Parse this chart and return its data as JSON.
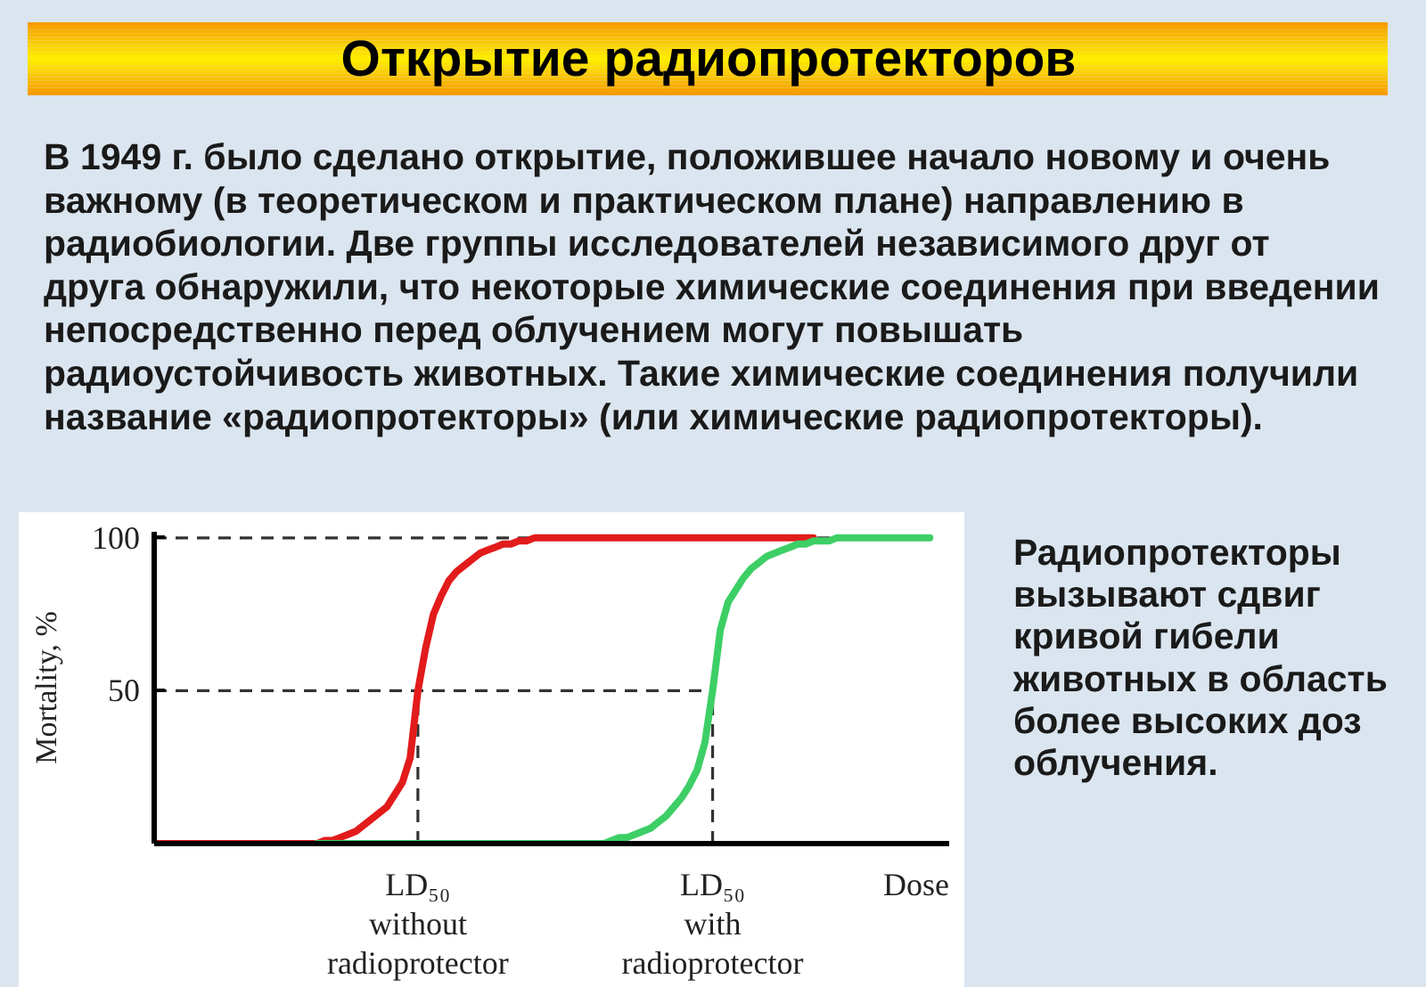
{
  "chart_data": {
    "type": "line",
    "title": "Открытие радиопротекторов",
    "ylabel": "Mortality, %",
    "xlabel": "Dose",
    "annotations": [
      "В 1949 г. было сделано открытие, положившее начало новому  и очень важному (в теоретическом и практическом плане) направлению в радиобиологии. Две группы исследователей независимого друг от друга обнаружили, что некоторые химические соединения при введении непосредственно перед облучением могут повышать\nрадиоустойчивость животных. Такие химические соединения получили название «радиопротекторы» (или химические радиопротекторы).",
      "Радиопротекторы вызывают сдвиг кривой гибели животных в область более высоких доз облучения."
    ],
    "categories": [
      null,
      null,
      null,
      null,
      null,
      null,
      null,
      null,
      null,
      null,
      null,
      null,
      null,
      null,
      null,
      null,
      null,
      null,
      null,
      null,
      null,
      null,
      null,
      null,
      null,
      null,
      null,
      null,
      null,
      null,
      null,
      null,
      null,
      null,
      "LD₅₀ without radioprotector",
      null,
      null,
      null,
      null,
      null,
      null,
      null,
      null,
      null,
      null,
      null,
      null,
      null,
      null,
      null,
      null,
      null,
      null,
      null,
      null,
      null,
      null,
      null,
      null,
      null,
      null,
      null,
      null,
      null,
      null,
      null,
      null,
      null,
      null,
      null,
      null,
      null,
      "LD₅₀ with radioprotector",
      null,
      null,
      null,
      null,
      null,
      null,
      null,
      null,
      null,
      null,
      null,
      null,
      null,
      null,
      null,
      null,
      null,
      null,
      null,
      null,
      null,
      null,
      null,
      null,
      null,
      null,
      null,
      null
    ],
    "series": [
      {
        "color": "#e21b1b",
        "values": [
          0,
          0,
          0,
          0,
          0,
          0,
          0,
          0,
          0,
          0,
          0,
          0,
          0,
          0,
          0,
          0,
          0,
          0,
          0,
          0,
          0,
          0,
          1,
          1,
          2,
          3,
          4,
          6,
          8,
          10,
          12,
          16,
          20,
          28,
          50,
          64,
          75,
          81,
          86,
          89,
          91,
          93,
          95,
          96,
          97,
          98,
          98,
          99,
          99,
          100,
          100,
          100,
          100,
          100,
          100,
          100,
          100,
          100,
          100,
          100,
          100,
          100,
          100,
          100,
          100,
          100,
          100,
          100,
          100,
          100,
          100,
          100,
          100,
          100,
          100,
          100,
          100,
          100,
          100,
          100,
          100,
          100,
          100,
          100,
          100,
          100,
          null,
          null,
          null,
          null,
          null,
          null,
          null,
          null,
          null,
          null,
          null,
          null,
          null,
          null,
          null
        ]
      },
      {
        "color": "#3dcf66",
        "values": [
          null,
          null,
          null,
          null,
          null,
          null,
          null,
          null,
          null,
          null,
          null,
          null,
          null,
          null,
          null,
          null,
          null,
          null,
          null,
          null,
          null,
          0,
          0,
          0,
          0,
          0,
          0,
          0,
          0,
          0,
          0,
          0,
          0,
          0,
          0,
          0,
          0,
          0,
          0,
          0,
          0,
          0,
          0,
          0,
          0,
          0,
          0,
          0,
          0,
          0,
          0,
          0,
          0,
          0,
          0,
          0,
          0,
          0,
          0,
          1,
          2,
          2,
          3,
          4,
          5,
          7,
          9,
          12,
          15,
          19,
          24,
          33,
          50,
          70,
          79,
          83,
          87,
          90,
          92,
          94,
          95,
          96,
          97,
          98,
          98,
          99,
          99,
          99,
          100,
          100,
          100,
          100,
          100,
          100,
          100,
          100,
          100,
          100,
          100,
          100,
          100
        ]
      }
    ],
    "ylim": [
      0,
      102
    ],
    "yticks": [
      50,
      100
    ],
    "ref_lines": [
      {
        "axis": "y",
        "value": 100,
        "color": "#333333",
        "line_style": "dashed"
      },
      {
        "axis": "y",
        "value": 50,
        "color": "#333333",
        "line_style": "dashed"
      },
      {
        "axis": "x",
        "value": "LD₅₀ without radioprotector",
        "color": "#333333",
        "line_style": "dashed"
      },
      {
        "axis": "x",
        "value": "LD₅₀ with radioprotector",
        "color": "#333333",
        "line_style": "dashed"
      }
    ]
  }
}
